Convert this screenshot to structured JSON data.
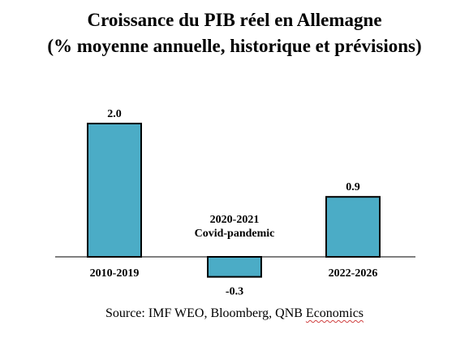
{
  "title_line1": "Croissance du PIB réel en Allemagne",
  "title_line2": "(% moyenne annuelle, historique et prévisions)",
  "source": {
    "prefix": "Source: IMF WEO, Bloomberg, QNB ",
    "highlight": "Economics"
  },
  "colors": {
    "bar_fill": "#4bacc6",
    "bar_stroke": "#000000",
    "text": "#000000"
  },
  "chart_data": {
    "type": "bar",
    "title": "Croissance du PIB réel en Allemagne (% moyenne annuelle, historique et prévisions)",
    "categories": [
      "2010-2019",
      "2020-2021\nCovid-pandemic",
      "2022-2026"
    ],
    "category_labels": [
      [
        "2010-2019"
      ],
      [
        "2020-2021",
        "Covid-pandemic"
      ],
      [
        "2022-2026"
      ]
    ],
    "values": [
      2.0,
      -0.3,
      0.9
    ],
    "value_labels": [
      "2.0",
      "-0.3",
      "0.9"
    ],
    "xlabel": "",
    "ylabel": "",
    "ylim": [
      -0.4,
      2.2
    ],
    "grid": false,
    "legend": "none"
  }
}
